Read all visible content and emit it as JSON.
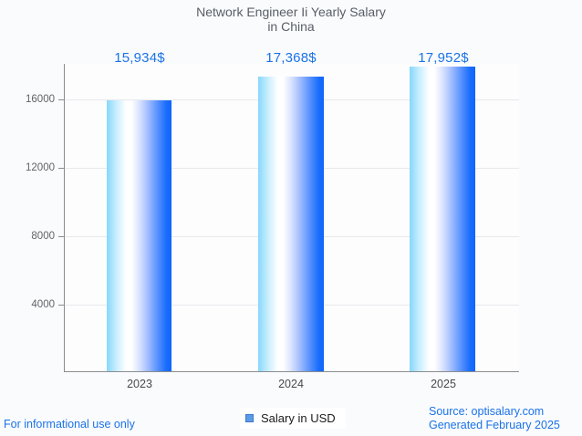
{
  "page": {
    "background": "#fafbfd",
    "accent_blue": "#1a73e8",
    "footer_left": "For informational use only",
    "source_line1": "Source: optisalary.com",
    "source_line2": "Generated February 2025"
  },
  "chart_data": {
    "type": "bar",
    "title_line1": "Network Engineer Ii Yearly Salary",
    "title_line2": "in China",
    "categories": [
      "2023",
      "2024",
      "2025"
    ],
    "values": [
      15934,
      17368,
      17952
    ],
    "value_labels": [
      "15,934$",
      "17,368$",
      "17,952$"
    ],
    "series_name": "Salary in USD",
    "xlabel": "",
    "ylabel": "",
    "ylim": [
      0,
      18100
    ],
    "yticks": [
      4000,
      8000,
      12000,
      16000
    ],
    "ytick_labels": [
      "4000",
      "8000",
      "12000",
      "16000"
    ],
    "grid": true,
    "legend_position": "bottom",
    "bar_gradient": [
      "#87d7fc",
      "#ffffff",
      "#0f65fb"
    ],
    "legend_swatch_color": "#5c9ce6",
    "value_label_color": "#1a73e8",
    "title_color": "#585e66"
  }
}
